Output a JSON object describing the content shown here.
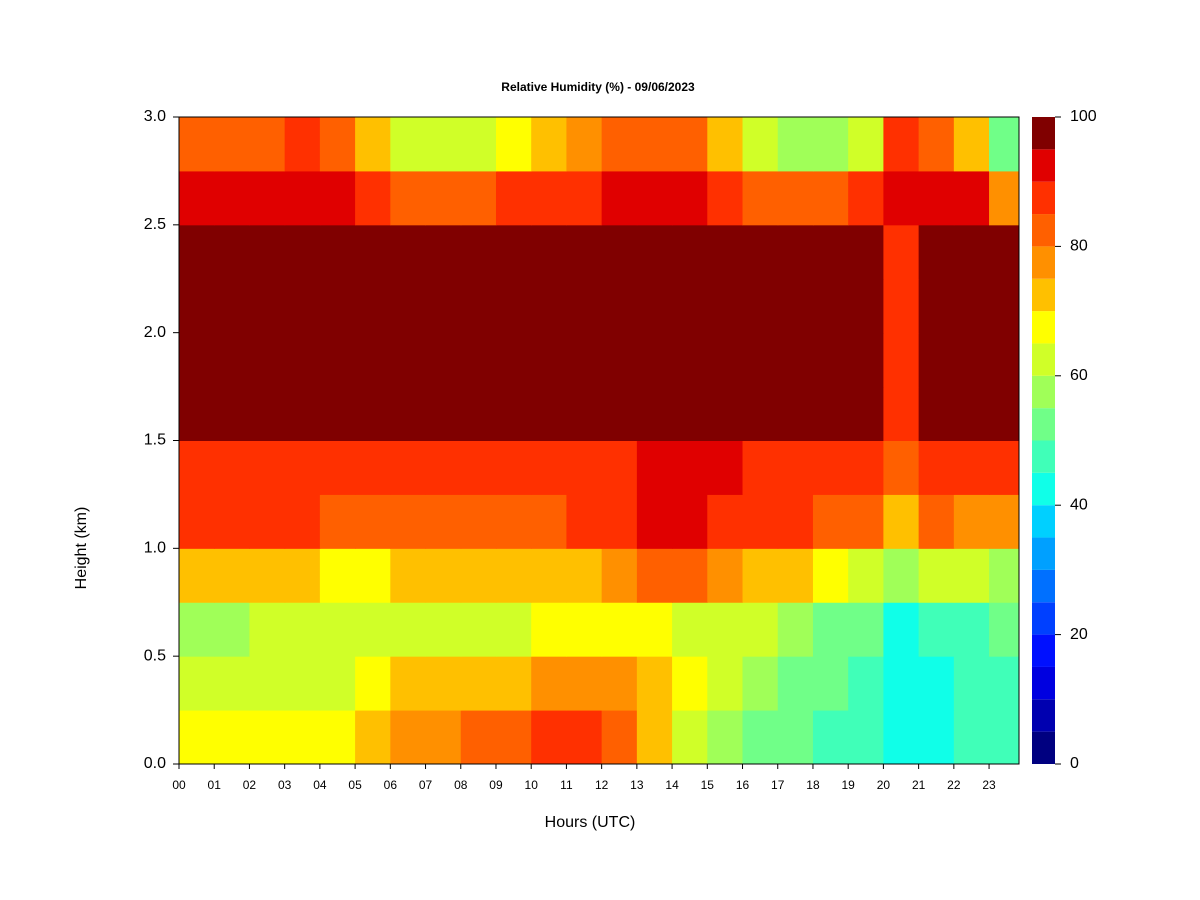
{
  "chart_data": {
    "type": "heatmap",
    "title": "Relative Humidity (%) - 09/06/2023",
    "xlabel": "Hours (UTC)",
    "ylabel": "Height (km)",
    "x": [
      0,
      1,
      2,
      3,
      4,
      5,
      6,
      7,
      8,
      9,
      10,
      11,
      12,
      13,
      14,
      15,
      16,
      17,
      18,
      19,
      20,
      21,
      22,
      23
    ],
    "y": [
      0,
      0.25,
      0.5,
      0.75,
      1,
      1.25,
      1.5,
      1.75,
      2,
      2.25,
      2.5,
      2.75
    ],
    "z": [
      [
        68,
        68,
        68,
        68,
        68,
        72,
        76,
        78,
        80,
        84,
        88,
        88,
        82,
        72,
        62,
        56,
        52,
        50,
        48,
        45,
        40,
        42,
        45,
        48
      ],
      [
        62,
        62,
        64,
        64,
        64,
        66,
        70,
        70,
        72,
        74,
        76,
        76,
        76,
        72,
        66,
        60,
        56,
        52,
        50,
        46,
        40,
        44,
        46,
        48
      ],
      [
        58,
        58,
        60,
        60,
        60,
        62,
        62,
        62,
        62,
        62,
        66,
        66,
        68,
        68,
        64,
        62,
        60,
        56,
        54,
        50,
        42,
        48,
        48,
        50
      ],
      [
        72,
        72,
        70,
        70,
        68,
        68,
        70,
        72,
        72,
        72,
        70,
        72,
        76,
        80,
        80,
        78,
        74,
        70,
        66,
        62,
        55,
        62,
        60,
        58
      ],
      [
        86,
        86,
        86,
        86,
        84,
        84,
        82,
        84,
        84,
        84,
        84,
        86,
        88,
        90,
        90,
        88,
        86,
        86,
        84,
        80,
        70,
        80,
        78,
        76
      ],
      [
        88,
        88,
        88,
        88,
        88,
        86,
        86,
        86,
        86,
        86,
        86,
        86,
        88,
        90,
        90,
        90,
        88,
        88,
        88,
        88,
        80,
        88,
        86,
        86
      ],
      [
        96,
        96,
        96,
        96,
        96,
        96,
        96,
        96,
        96,
        96,
        96,
        96,
        96,
        96,
        96,
        98,
        98,
        98,
        98,
        98,
        85,
        98,
        96,
        96
      ],
      [
        98,
        98,
        98,
        98,
        98,
        98,
        98,
        98,
        98,
        98,
        98,
        98,
        98,
        98,
        98,
        98,
        98,
        98,
        98,
        98,
        88,
        98,
        98,
        98
      ],
      [
        98,
        98,
        98,
        98,
        98,
        98,
        98,
        98,
        98,
        98,
        98,
        98,
        98,
        98,
        98,
        98,
        98,
        98,
        98,
        98,
        88,
        98,
        98,
        98
      ],
      [
        98,
        98,
        98,
        98,
        98,
        98,
        98,
        98,
        98,
        98,
        98,
        98,
        98,
        98,
        98,
        98,
        98,
        98,
        98,
        98,
        88,
        98,
        95,
        95
      ],
      [
        92,
        92,
        92,
        92,
        92,
        88,
        84,
        84,
        84,
        86,
        86,
        86,
        90,
        92,
        90,
        88,
        84,
        84,
        84,
        86,
        90,
        92,
        90,
        78
      ],
      [
        84,
        84,
        84,
        86,
        84,
        72,
        62,
        62,
        64,
        66,
        70,
        76,
        84,
        84,
        80,
        72,
        60,
        56,
        56,
        60,
        88,
        84,
        72,
        54
      ]
    ],
    "xlim": [
      0,
      23.85
    ],
    "ylim": [
      0,
      3
    ],
    "xticks": [
      {
        "value": 0,
        "label": "00"
      },
      {
        "value": 1,
        "label": "01"
      },
      {
        "value": 2,
        "label": "02"
      },
      {
        "value": 3,
        "label": "03"
      },
      {
        "value": 4,
        "label": "04"
      },
      {
        "value": 5,
        "label": "05"
      },
      {
        "value": 6,
        "label": "06"
      },
      {
        "value": 7,
        "label": "07"
      },
      {
        "value": 8,
        "label": "08"
      },
      {
        "value": 9,
        "label": "09"
      },
      {
        "value": 10,
        "label": "10"
      },
      {
        "value": 11,
        "label": "11"
      },
      {
        "value": 12,
        "label": "12"
      },
      {
        "value": 13,
        "label": "13"
      },
      {
        "value": 14,
        "label": "14"
      },
      {
        "value": 15,
        "label": "15"
      },
      {
        "value": 16,
        "label": "16"
      },
      {
        "value": 17,
        "label": "17"
      },
      {
        "value": 18,
        "label": "18"
      },
      {
        "value": 19,
        "label": "19"
      },
      {
        "value": 20,
        "label": "20"
      },
      {
        "value": 21,
        "label": "21"
      },
      {
        "value": 22,
        "label": "22"
      },
      {
        "value": 23,
        "label": "23"
      }
    ],
    "yticks": [
      {
        "value": 0,
        "label": "0.0"
      },
      {
        "value": 0.5,
        "label": "0.5"
      },
      {
        "value": 1,
        "label": "1.0"
      },
      {
        "value": 1.5,
        "label": "1.5"
      },
      {
        "value": 2,
        "label": "2.0"
      },
      {
        "value": 2.5,
        "label": "2.5"
      },
      {
        "value": 3,
        "label": "3.0"
      }
    ],
    "colorbar": {
      "levels": [
        0,
        5,
        10,
        15,
        20,
        25,
        30,
        35,
        40,
        45,
        50,
        55,
        60,
        65,
        70,
        75,
        80,
        85,
        90,
        95,
        100
      ],
      "colors": [
        "#000080",
        "#0000b0",
        "#0000e0",
        "#0010ff",
        "#0040ff",
        "#0070ff",
        "#00a0ff",
        "#00d0ff",
        "#10ffe8",
        "#40ffb8",
        "#70ff88",
        "#a0ff58",
        "#d0ff28",
        "#ffff00",
        "#ffc000",
        "#ff9000",
        "#ff6000",
        "#ff3000",
        "#e00000",
        "#800000"
      ],
      "ticks": [
        0,
        20,
        40,
        60,
        80,
        100
      ]
    }
  }
}
